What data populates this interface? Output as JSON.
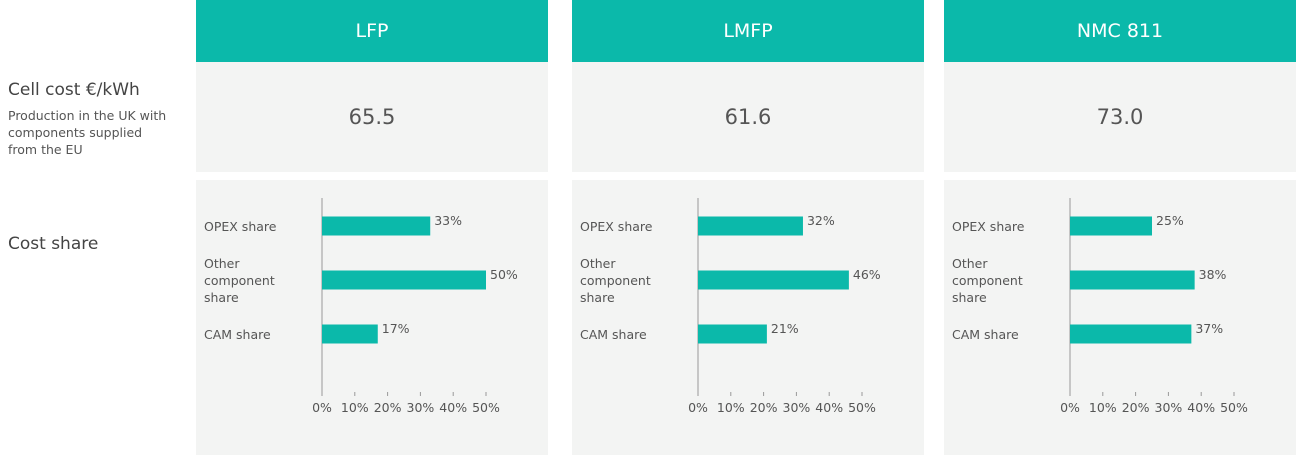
{
  "rows": {
    "cell_cost": {
      "label": "Cell cost €/kWh",
      "note": "Production in the UK with components supplied from the EU"
    },
    "cost_share": {
      "label": "Cost share"
    }
  },
  "columns": [
    {
      "name": "LFP",
      "cell_cost": "65.5"
    },
    {
      "name": "LMFP",
      "cell_cost": "61.6"
    },
    {
      "name": "NMC 811",
      "cell_cost": "73.0"
    }
  ],
  "chart_data": [
    {
      "type": "bar",
      "orientation": "horizontal",
      "color": "#0bb9aa",
      "categories": [
        "OPEX share",
        "Other component share",
        "CAM share"
      ],
      "values": [
        33,
        50,
        17
      ],
      "value_labels": [
        "33%",
        "50%",
        "17%"
      ],
      "xlim": [
        0,
        50
      ],
      "xticks": [
        {
          "value": 0,
          "label": "0%"
        },
        {
          "value": 10,
          "label": "10%"
        },
        {
          "value": 20,
          "label": "20%"
        },
        {
          "value": 30,
          "label": "30%"
        },
        {
          "value": 40,
          "label": "40%"
        },
        {
          "value": 50,
          "label": "50%"
        }
      ]
    },
    {
      "type": "bar",
      "orientation": "horizontal",
      "color": "#0bb9aa",
      "categories": [
        "OPEX share",
        "Other component share",
        "CAM share"
      ],
      "values": [
        32,
        46,
        21
      ],
      "value_labels": [
        "32%",
        "46%",
        "21%"
      ],
      "xlim": [
        0,
        50
      ],
      "xticks": [
        {
          "value": 0,
          "label": "0%"
        },
        {
          "value": 10,
          "label": "10%"
        },
        {
          "value": 20,
          "label": "20%"
        },
        {
          "value": 30,
          "label": "30%"
        },
        {
          "value": 40,
          "label": "40%"
        },
        {
          "value": 50,
          "label": "50%"
        }
      ]
    },
    {
      "type": "bar",
      "orientation": "horizontal",
      "color": "#0bb9aa",
      "categories": [
        "OPEX share",
        "Other component share",
        "CAM share"
      ],
      "values": [
        25,
        38,
        37
      ],
      "value_labels": [
        "25%",
        "38%",
        "37%"
      ],
      "xlim": [
        0,
        50
      ],
      "xticks": [
        {
          "value": 0,
          "label": "0%"
        },
        {
          "value": 10,
          "label": "10%"
        },
        {
          "value": 20,
          "label": "20%"
        },
        {
          "value": 30,
          "label": "30%"
        },
        {
          "value": 40,
          "label": "40%"
        },
        {
          "value": 50,
          "label": "50%"
        }
      ]
    }
  ]
}
